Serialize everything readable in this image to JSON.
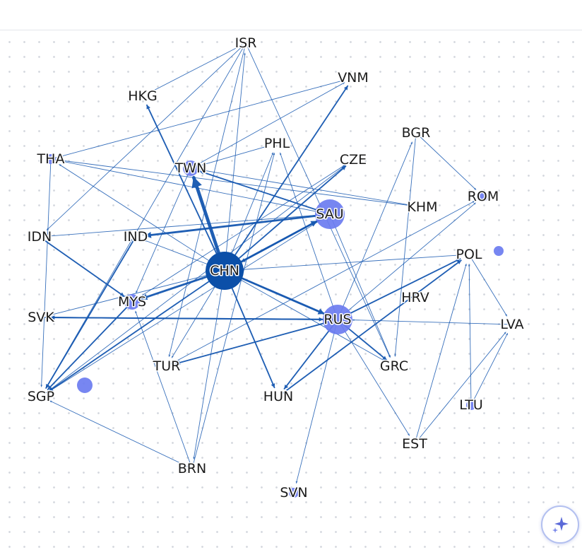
{
  "colors": {
    "edge": "#1557b0",
    "node_fill": "#6b7cf0",
    "hub_fill": "#0b4fa8",
    "label": "#1b1b1b",
    "fab_accent": "#5b6ad8"
  },
  "assistant_button": {
    "icon": "sparkle-icon"
  },
  "nodes": [
    {
      "id": "ISR",
      "label": "ISR",
      "size": 0
    },
    {
      "id": "VNM",
      "label": "VNM",
      "size": 0
    },
    {
      "id": "HKG",
      "label": "HKG",
      "size": 0
    },
    {
      "id": "BGR",
      "label": "BGR",
      "size": 0
    },
    {
      "id": "PHL",
      "label": "PHL",
      "size": 0
    },
    {
      "id": "THA",
      "label": "THA",
      "size": 1
    },
    {
      "id": "TWN",
      "label": "TWN",
      "size": 2
    },
    {
      "id": "CZE",
      "label": "CZE",
      "size": 0
    },
    {
      "id": "ROM",
      "label": "ROM",
      "size": 1
    },
    {
      "id": "KHM",
      "label": "KHM",
      "size": 0
    },
    {
      "id": "SAU",
      "label": "SAU",
      "size": 4
    },
    {
      "id": "IDN",
      "label": "IDN",
      "size": 0
    },
    {
      "id": "IND",
      "label": "IND",
      "size": 0
    },
    {
      "id": "POL",
      "label": "POL",
      "size": 0
    },
    {
      "id": "CHN",
      "label": "CHN",
      "size": 5
    },
    {
      "id": "HRV",
      "label": "HRV",
      "size": 0
    },
    {
      "id": "MYS",
      "label": "MYS",
      "size": 2
    },
    {
      "id": "SVK",
      "label": "SVK",
      "size": 0
    },
    {
      "id": "RUS",
      "label": "RUS",
      "size": 4
    },
    {
      "id": "LVA",
      "label": "LVA",
      "size": 0
    },
    {
      "id": "TUR",
      "label": "TUR",
      "size": 0
    },
    {
      "id": "GRC",
      "label": "GRC",
      "size": 0
    },
    {
      "id": "SGP",
      "label": "SGP",
      "size": 0
    },
    {
      "id": "HUN",
      "label": "HUN",
      "size": 0
    },
    {
      "id": "LTU",
      "label": "LTU",
      "size": 1
    },
    {
      "id": "EST",
      "label": "EST",
      "size": 0
    },
    {
      "id": "BRN",
      "label": "BRN",
      "size": 0
    },
    {
      "id": "SVN",
      "label": "SVN",
      "size": 1
    },
    {
      "id": "ISO1",
      "label": "",
      "size": 2
    },
    {
      "id": "ISO2",
      "label": "",
      "size": 1
    }
  ],
  "edges": [
    {
      "source": "CHN",
      "target": "TWN",
      "weight": 5
    },
    {
      "source": "CHN",
      "target": "HKG",
      "weight": 2
    },
    {
      "source": "CHN",
      "target": "VNM",
      "weight": 2
    },
    {
      "source": "CHN",
      "target": "CZE",
      "weight": 2
    },
    {
      "source": "CHN",
      "target": "SAU",
      "weight": 3
    },
    {
      "source": "CHN",
      "target": "MYS",
      "weight": 3
    },
    {
      "source": "CHN",
      "target": "RUS",
      "weight": 3
    },
    {
      "source": "CHN",
      "target": "HUN",
      "weight": 2
    },
    {
      "source": "CHN",
      "target": "SGP",
      "weight": 2
    },
    {
      "source": "CHN",
      "target": "THA",
      "weight": 1
    },
    {
      "source": "CHN",
      "target": "POL",
      "weight": 1
    },
    {
      "source": "CHN",
      "target": "GRC",
      "weight": 1
    },
    {
      "source": "CHN",
      "target": "TUR",
      "weight": 1
    },
    {
      "source": "CHN",
      "target": "SVK",
      "weight": 1
    },
    {
      "source": "CHN",
      "target": "ISR",
      "weight": 1
    },
    {
      "source": "CHN",
      "target": "PHL",
      "weight": 1
    },
    {
      "source": "CHN",
      "target": "BRN",
      "weight": 1
    },
    {
      "source": "CHN",
      "target": "IND",
      "weight": 1
    },
    {
      "source": "SAU",
      "target": "IND",
      "weight": 3
    },
    {
      "source": "SAU",
      "target": "TWN",
      "weight": 2
    },
    {
      "source": "SAU",
      "target": "IDN",
      "weight": 1
    },
    {
      "source": "SAU",
      "target": "CHN",
      "weight": 2
    },
    {
      "source": "SAU",
      "target": "SGP",
      "weight": 1
    },
    {
      "source": "SAU",
      "target": "THA",
      "weight": 1
    },
    {
      "source": "SAU",
      "target": "GRC",
      "weight": 1
    },
    {
      "source": "RUS",
      "target": "TUR",
      "weight": 2
    },
    {
      "source": "RUS",
      "target": "POL",
      "weight": 2
    },
    {
      "source": "RUS",
      "target": "HUN",
      "weight": 2
    },
    {
      "source": "RUS",
      "target": "GRC",
      "weight": 2
    },
    {
      "source": "RUS",
      "target": "SVK",
      "weight": 2
    },
    {
      "source": "RUS",
      "target": "SVN",
      "weight": 1
    },
    {
      "source": "RUS",
      "target": "BGR",
      "weight": 1
    },
    {
      "source": "RUS",
      "target": "ROM",
      "weight": 1
    },
    {
      "source": "RUS",
      "target": "CHN",
      "weight": 1
    },
    {
      "source": "RUS",
      "target": "EST",
      "weight": 1
    },
    {
      "source": "RUS",
      "target": "PHL",
      "weight": 1
    },
    {
      "source": "ISR",
      "target": "HKG",
      "weight": 1
    },
    {
      "source": "ISR",
      "target": "SGP",
      "weight": 1
    },
    {
      "source": "ISR",
      "target": "IDN",
      "weight": 1
    },
    {
      "source": "ISR",
      "target": "GRC",
      "weight": 1
    },
    {
      "source": "ISR",
      "target": "TUR",
      "weight": 1
    },
    {
      "source": "THA",
      "target": "VNM",
      "weight": 1
    },
    {
      "source": "THA",
      "target": "KHM",
      "weight": 1
    },
    {
      "source": "THA",
      "target": "SGP",
      "weight": 1
    },
    {
      "source": "TWN",
      "target": "VNM",
      "weight": 1
    },
    {
      "source": "TWN",
      "target": "KHM",
      "weight": 1
    },
    {
      "source": "TWN",
      "target": "PHL",
      "weight": 1
    },
    {
      "source": "TWN",
      "target": "MYS",
      "weight": 1
    },
    {
      "source": "IDN",
      "target": "MYS",
      "weight": 2
    },
    {
      "source": "IND",
      "target": "SGP",
      "weight": 2
    },
    {
      "source": "MYS",
      "target": "SGP",
      "weight": 2
    },
    {
      "source": "MYS",
      "target": "CZE",
      "weight": 1
    },
    {
      "source": "SGP",
      "target": "CZE",
      "weight": 1
    },
    {
      "source": "SVK",
      "target": "RUS",
      "weight": 2
    },
    {
      "source": "HUN",
      "target": "POL",
      "weight": 2
    },
    {
      "source": "BRN",
      "target": "SGP",
      "weight": 1
    },
    {
      "source": "BRN",
      "target": "MYS",
      "weight": 1
    },
    {
      "source": "BRN",
      "target": "PHL",
      "weight": 1
    },
    {
      "source": "BGR",
      "target": "ROM",
      "weight": 1
    },
    {
      "source": "BGR",
      "target": "GRC",
      "weight": 1
    },
    {
      "source": "EST",
      "target": "LVA",
      "weight": 1
    },
    {
      "source": "EST",
      "target": "POL",
      "weight": 1
    },
    {
      "source": "LTU",
      "target": "POL",
      "weight": 1
    },
    {
      "source": "LTU",
      "target": "LVA",
      "weight": 1
    },
    {
      "source": "LVA",
      "target": "RUS",
      "weight": 1
    },
    {
      "source": "POL",
      "target": "LVA",
      "weight": 1
    },
    {
      "source": "TUR",
      "target": "ROM",
      "weight": 1
    }
  ]
}
